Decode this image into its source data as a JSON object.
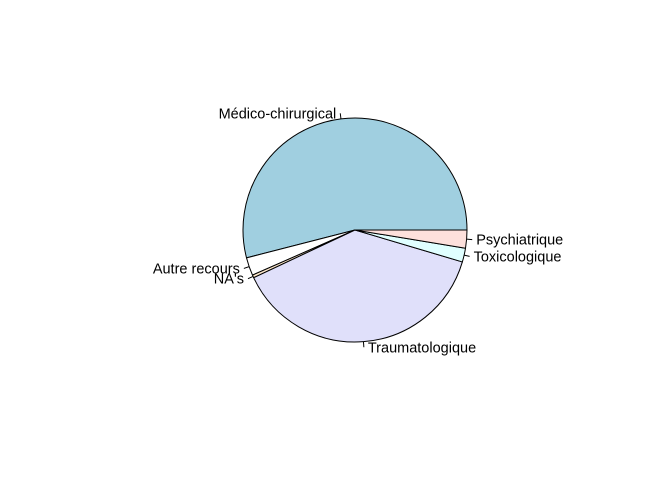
{
  "chart_data": {
    "type": "pie",
    "title": "",
    "labels": [
      "Médico-chirurgical",
      "Autre recours",
      "NA's",
      "Traumatologique",
      "Toxicologique",
      "Psychiatrique"
    ],
    "values": [
      54.0,
      2.6,
      0.4,
      38.4,
      2.0,
      2.6
    ],
    "colors": [
      "#a0cfe0",
      "#ffffff",
      "#fde8cc",
      "#e0e0fa",
      "#e0ffff",
      "#fde0dc"
    ],
    "start_angle_deg": 0,
    "direction": "counterclockwise",
    "legend": "none"
  }
}
